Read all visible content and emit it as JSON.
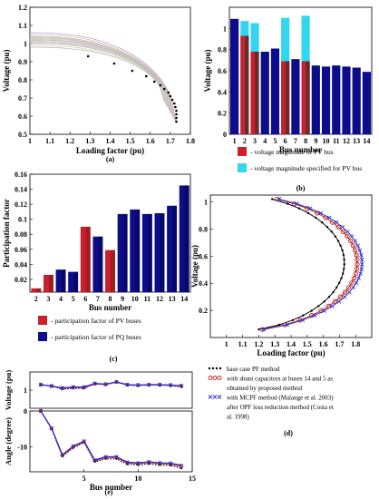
{
  "colors": {
    "pv_bar": "#cc1f2b",
    "pq_bar": "#0d0d8c",
    "specified": "#33d6ee",
    "base_dots": "#000000",
    "shunt": "#c0281e",
    "mcpf": "#3030d0"
  },
  "panels": {
    "a": {
      "tag": "(a)"
    },
    "b": {
      "tag": "(b)"
    },
    "c": {
      "tag": "(c)"
    },
    "d": {
      "tag": "(d)"
    },
    "e": {
      "tag": "(e)"
    }
  },
  "legends": {
    "b": [
      {
        "marker": "pv_bar",
        "text": "- voltage magnitude of PV bus"
      },
      {
        "marker": "specified",
        "text": "- voltage magnitude specified for PV bus"
      }
    ],
    "c": [
      {
        "marker": "pv_bar",
        "text": "- participation factor of PV buses"
      },
      {
        "marker": "pq_bar",
        "text": "- participation factor of PQ buses"
      }
    ],
    "d": [
      {
        "marker": "dots",
        "text": "base case PF method"
      },
      {
        "marker": "circles",
        "text": "with shunt capacitors at buses 14 and 5 as"
      },
      {
        "marker": "none",
        "text": "obtained by proposed method"
      },
      {
        "marker": "crosses",
        "text": "with MCPF method (Malange et al. 2003)"
      },
      {
        "marker": "none",
        "text": "after OPF loss reduction method (Costa et"
      },
      {
        "marker": "none",
        "text": "al. 1998)"
      }
    ]
  },
  "chart_data": [
    {
      "id": "a",
      "type": "line",
      "xlabel": "Loading factor (pu)",
      "ylabel": "Voltage (pu)",
      "xlim": [
        1,
        1.8
      ],
      "ylim": [
        0.5,
        1.2
      ],
      "xticks": [
        "1",
        "1.1",
        "1.2",
        "1.3",
        "1.4",
        "1.5",
        "1.6",
        "1.7",
        "1.8"
      ],
      "yticks": [
        "0.5",
        "0.6",
        "0.7",
        "0.8",
        "0.9",
        "1",
        "1.1",
        "1.2"
      ],
      "series_start": [
        1.06,
        1.05,
        1.04,
        1.035,
        1.03,
        1.025,
        1.02,
        1.015,
        1.01,
        1.005,
        1.0,
        0.99,
        0.98
      ],
      "nose_x": 1.73,
      "nose_y": 0.56,
      "dots": [
        [
          1.29,
          0.93
        ],
        [
          1.42,
          0.89
        ],
        [
          1.51,
          0.85
        ],
        [
          1.58,
          0.82
        ],
        [
          1.62,
          0.79
        ],
        [
          1.65,
          0.77
        ],
        [
          1.67,
          0.75
        ],
        [
          1.69,
          0.73
        ],
        [
          1.7,
          0.71
        ],
        [
          1.71,
          0.69
        ],
        [
          1.72,
          0.67
        ],
        [
          1.725,
          0.65
        ],
        [
          1.73,
          0.63
        ],
        [
          1.73,
          0.61
        ],
        [
          1.73,
          0.59
        ],
        [
          1.73,
          0.57
        ]
      ]
    },
    {
      "id": "b",
      "type": "bar",
      "xlabel": "Bus number",
      "ylabel": "Voltage (pu)",
      "ylim": [
        0,
        1.2
      ],
      "yticks": [
        "0",
        "0.2",
        "0.4",
        "0.6",
        "0.8",
        "1"
      ],
      "categories": [
        "1",
        "2",
        "3",
        "4",
        "5",
        "6",
        "7",
        "8",
        "9",
        "10",
        "11",
        "12",
        "13",
        "14"
      ],
      "values": [
        1.09,
        0.93,
        0.78,
        0.78,
        0.81,
        0.69,
        0.71,
        0.69,
        0.65,
        0.64,
        0.65,
        0.64,
        0.63,
        0.59
      ],
      "specified": [
        null,
        1.07,
        1.05,
        null,
        null,
        1.1,
        null,
        1.12,
        null,
        null,
        null,
        null,
        null,
        null
      ],
      "pv_buses": [
        "2",
        "3",
        "6",
        "8"
      ]
    },
    {
      "id": "c",
      "type": "bar",
      "xlabel": "Bus number",
      "ylabel": "Participation factor",
      "ylim": [
        0,
        0.16
      ],
      "yticks": [
        "0.02",
        "0.04",
        "0.06",
        "0.08",
        "0.1",
        "0.12",
        "0.14",
        "0.16"
      ],
      "categories": [
        "2",
        "3",
        "4",
        "5",
        "6",
        "7",
        "8",
        "9",
        "10",
        "11",
        "12",
        "13",
        "14"
      ],
      "values": [
        0.008,
        0.026,
        0.033,
        0.03,
        0.09,
        0.077,
        0.059,
        0.107,
        0.113,
        0.107,
        0.108,
        0.118,
        0.145
      ],
      "pv_buses": [
        "2",
        "3",
        "6",
        "8"
      ]
    },
    {
      "id": "d",
      "type": "line",
      "xlabel": "Loading factor (pu)",
      "ylabel": "Voltage (pu)",
      "xlim": [
        0.9,
        1.9
      ],
      "ylim": [
        0,
        1.05
      ],
      "xticks": [
        "1",
        "1.1",
        "1.2",
        "1.3",
        "1.4",
        "1.5",
        "1.6",
        "1.7",
        "1.8"
      ],
      "yticks": [
        "0.2",
        "0.4",
        "0.6",
        "0.8",
        "1"
      ],
      "series": [
        {
          "name": "base case PF method",
          "nose_x": 1.73,
          "nose_y": 0.55
        },
        {
          "name": "with shunt capacitors at buses 14 and 5 as obtained by proposed method",
          "nose_x": 1.81,
          "nose_y": 0.55
        },
        {
          "name": "with MCPF method (Malange et al. 2003) after OPF loss reduction method (Costa et al. 1998)",
          "nose_x": 1.84,
          "nose_y": 0.55
        }
      ]
    },
    {
      "id": "e",
      "type": "line",
      "xlabel": "Bus number",
      "ylabel": "Voltage (pu)",
      "ylabel2": "Angle (degree)",
      "xlim": [
        0,
        15
      ],
      "voltage_ylim": [
        0.8,
        1.2
      ],
      "voltage_yticks": [
        "1"
      ],
      "angle_ylim": [
        -17,
        0
      ],
      "angle_yticks": [
        "0",
        "-10"
      ],
      "xticks": [
        "5",
        "10",
        "15"
      ],
      "x": [
        1,
        2,
        3,
        4,
        5,
        6,
        7,
        8,
        9,
        10,
        11,
        12,
        13,
        14
      ],
      "voltage": [
        {
          "name": "base case PF method",
          "values": [
            1.06,
            1.045,
            1.01,
            1.02,
            1.02,
            1.07,
            1.06,
            1.09,
            1.055,
            1.05,
            1.057,
            1.055,
            1.05,
            1.035
          ]
        },
        {
          "name": "shunt",
          "values": [
            1.06,
            1.045,
            1.02,
            1.03,
            1.03,
            1.07,
            1.065,
            1.09,
            1.06,
            1.055,
            1.06,
            1.06,
            1.055,
            1.045
          ]
        },
        {
          "name": "MCPF",
          "values": [
            1.06,
            1.045,
            1.025,
            1.035,
            1.035,
            1.075,
            1.065,
            1.09,
            1.06,
            1.055,
            1.06,
            1.06,
            1.055,
            1.05
          ]
        }
      ],
      "angle": [
        {
          "name": "base case PF method",
          "values": [
            0,
            -5.0,
            -12.7,
            -10.3,
            -8.8,
            -14.2,
            -13.4,
            -13.4,
            -14.9,
            -15.1,
            -14.8,
            -15.1,
            -15.2,
            -16.0
          ]
        },
        {
          "name": "shunt",
          "values": [
            0,
            -4.9,
            -12.4,
            -10.0,
            -8.6,
            -13.9,
            -13.0,
            -13.0,
            -14.5,
            -14.7,
            -14.4,
            -14.7,
            -14.8,
            -15.5
          ]
        },
        {
          "name": "MCPF",
          "values": [
            0,
            -4.8,
            -12.2,
            -9.8,
            -8.4,
            -13.7,
            -12.8,
            -12.8,
            -14.3,
            -14.5,
            -14.2,
            -14.5,
            -14.6,
            -15.2
          ]
        }
      ]
    }
  ]
}
